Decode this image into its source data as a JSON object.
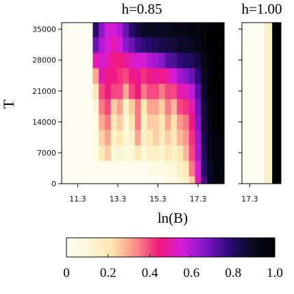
{
  "chart_data": [
    {
      "type": "heatmap",
      "title": "h=0.85",
      "xlabel": "ln(B)",
      "ylabel": "T",
      "x_ticks": [
        "11.3",
        "13.3",
        "15.3",
        "17.3"
      ],
      "x_tick_values": [
        11.3,
        13.3,
        15.3,
        17.3
      ],
      "y_ticks": [
        "0",
        "7000",
        "14000",
        "21000",
        "28000",
        "35000"
      ],
      "y_tick_values": [
        0,
        7000,
        14000,
        21000,
        28000,
        35000
      ],
      "xlim": [
        10.5,
        18.6
      ],
      "ylim": [
        0,
        36500
      ],
      "colormap": [
        "#fdfdf1",
        "#fcf6d4",
        "#fde4ae",
        "#fb8b85",
        "#f0197f",
        "#d51bd9",
        "#8018c8",
        "#2d0b7a",
        "#0a0a22",
        "#000000"
      ],
      "x": [
        12.2,
        12.5,
        12.8,
        13.1,
        13.4,
        13.7,
        14.0,
        14.3,
        14.6,
        14.9,
        15.2,
        15.5,
        15.8,
        16.1,
        16.4,
        16.7,
        17.0,
        17.3,
        17.6,
        17.9,
        18.2
      ],
      "y": [
        0,
        3500,
        7000,
        10500,
        14000,
        17500,
        21000,
        24500,
        28000,
        31500,
        35000
      ],
      "z": [
        [
          0.0,
          0.0,
          0.0,
          0.0,
          0.0,
          0.0,
          0.0,
          0.0,
          0.0,
          0.0,
          0.02,
          0.02,
          0.05,
          0.05,
          0.1,
          0.15,
          0.25,
          0.5,
          0.75,
          0.88,
          0.95
        ],
        [
          0.02,
          0.02,
          0.02,
          0.03,
          0.02,
          0.02,
          0.02,
          0.03,
          0.02,
          0.05,
          0.05,
          0.05,
          0.1,
          0.08,
          0.15,
          0.2,
          0.35,
          0.55,
          0.8,
          0.9,
          0.96
        ],
        [
          0.05,
          0.2,
          0.25,
          0.1,
          0.12,
          0.08,
          0.1,
          0.2,
          0.1,
          0.15,
          0.15,
          0.12,
          0.2,
          0.15,
          0.2,
          0.28,
          0.4,
          0.6,
          0.82,
          0.92,
          0.97
        ],
        [
          0.05,
          0.25,
          0.3,
          0.15,
          0.2,
          0.1,
          0.15,
          0.3,
          0.15,
          0.2,
          0.25,
          0.18,
          0.25,
          0.2,
          0.28,
          0.32,
          0.42,
          0.62,
          0.84,
          0.93,
          0.97
        ],
        [
          0.05,
          0.3,
          0.35,
          0.2,
          0.25,
          0.1,
          0.2,
          0.35,
          0.15,
          0.25,
          0.25,
          0.2,
          0.3,
          0.22,
          0.32,
          0.35,
          0.45,
          0.65,
          0.85,
          0.94,
          0.98
        ],
        [
          0.1,
          0.35,
          0.4,
          0.25,
          0.3,
          0.15,
          0.25,
          0.35,
          0.2,
          0.3,
          0.3,
          0.25,
          0.35,
          0.28,
          0.4,
          0.42,
          0.5,
          0.68,
          0.86,
          0.95,
          0.98
        ],
        [
          0.2,
          0.4,
          0.45,
          0.4,
          0.4,
          0.3,
          0.4,
          0.45,
          0.35,
          0.4,
          0.4,
          0.35,
          0.4,
          0.4,
          0.5,
          0.52,
          0.58,
          0.72,
          0.88,
          0.96,
          0.98
        ],
        [
          0.3,
          0.5,
          0.45,
          0.45,
          0.42,
          0.4,
          0.45,
          0.48,
          0.42,
          0.45,
          0.48,
          0.45,
          0.5,
          0.55,
          0.62,
          0.66,
          0.7,
          0.78,
          0.9,
          0.96,
          0.99
        ],
        [
          0.5,
          0.55,
          0.5,
          0.45,
          0.45,
          0.48,
          0.52,
          0.55,
          0.55,
          0.6,
          0.62,
          0.66,
          0.72,
          0.74,
          0.78,
          0.8,
          0.82,
          0.85,
          0.92,
          0.97,
          0.99
        ],
        [
          0.7,
          0.6,
          0.55,
          0.5,
          0.55,
          0.65,
          0.7,
          0.75,
          0.78,
          0.8,
          0.82,
          0.84,
          0.85,
          0.86,
          0.88,
          0.88,
          0.9,
          0.92,
          0.95,
          0.98,
          0.99
        ],
        [
          0.8,
          0.65,
          0.55,
          0.55,
          0.6,
          0.7,
          0.8,
          0.85,
          0.88,
          0.9,
          0.9,
          0.9,
          0.9,
          0.92,
          0.92,
          0.93,
          0.94,
          0.95,
          0.97,
          0.98,
          0.99
        ]
      ]
    },
    {
      "type": "heatmap",
      "title": "h=1.00",
      "x_ticks": [
        "17.3"
      ],
      "x_tick_values": [
        17.3
      ],
      "xlim": [
        16.9,
        18.9
      ],
      "ylim": [
        0,
        36500
      ],
      "bands": [
        {
          "x_from": 16.9,
          "x_to": 18.05,
          "value": 0.0
        },
        {
          "x_from": 18.05,
          "x_to": 18.45,
          "value": 0.15
        },
        {
          "x_from": 18.45,
          "x_to": 18.9,
          "value": 1.0
        }
      ]
    }
  ],
  "colorbar": {
    "ticks": [
      "0",
      "0.2",
      "0.4",
      "0.6",
      "0.8",
      "1.0"
    ],
    "tick_values": [
      0,
      0.2,
      0.4,
      0.6,
      0.8,
      1.0
    ]
  }
}
